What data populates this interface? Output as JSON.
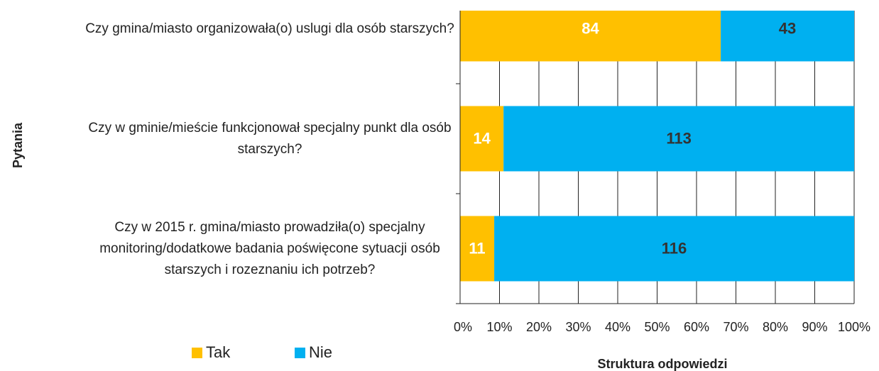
{
  "chart_data": {
    "type": "bar",
    "orientation": "horizontal",
    "stacked": "percent",
    "categories": [
      "Czy gmina/miasto organizowała(o) uslugi dla osób starszych?",
      "Czy w gminie/mieście funkcjonował specjalny punkt dla osób starszych?",
      "Czy w 2015 r. gmina/miasto prowadziła(o) specjalny monitoring/dodatkowe badania poświęcone sytuacji osób starszych  i rozeznaniu ich potrzeb?"
    ],
    "series": [
      {
        "name": "Tak",
        "color": "#FFC000",
        "values": [
          84,
          14,
          11
        ]
      },
      {
        "name": "Nie",
        "color": "#00B0F0",
        "values": [
          43,
          113,
          116
        ]
      }
    ],
    "xlim": [
      0,
      100
    ],
    "xticks": [
      {
        "value": 0,
        "label": "0%"
      },
      {
        "value": 10,
        "label": "10%"
      },
      {
        "value": 20,
        "label": "20%"
      },
      {
        "value": 30,
        "label": "30%"
      },
      {
        "value": 40,
        "label": "40%"
      },
      {
        "value": 50,
        "label": "50%"
      },
      {
        "value": 60,
        "label": "60%"
      },
      {
        "value": 70,
        "label": "70%"
      },
      {
        "value": 80,
        "label": "80%"
      },
      {
        "value": 90,
        "label": "90%"
      },
      {
        "value": 100,
        "label": "100%"
      }
    ],
    "x_label": "Struktura odpowiedzi",
    "y_label": "Pytania",
    "grid": true,
    "legend": "bottom-left"
  }
}
